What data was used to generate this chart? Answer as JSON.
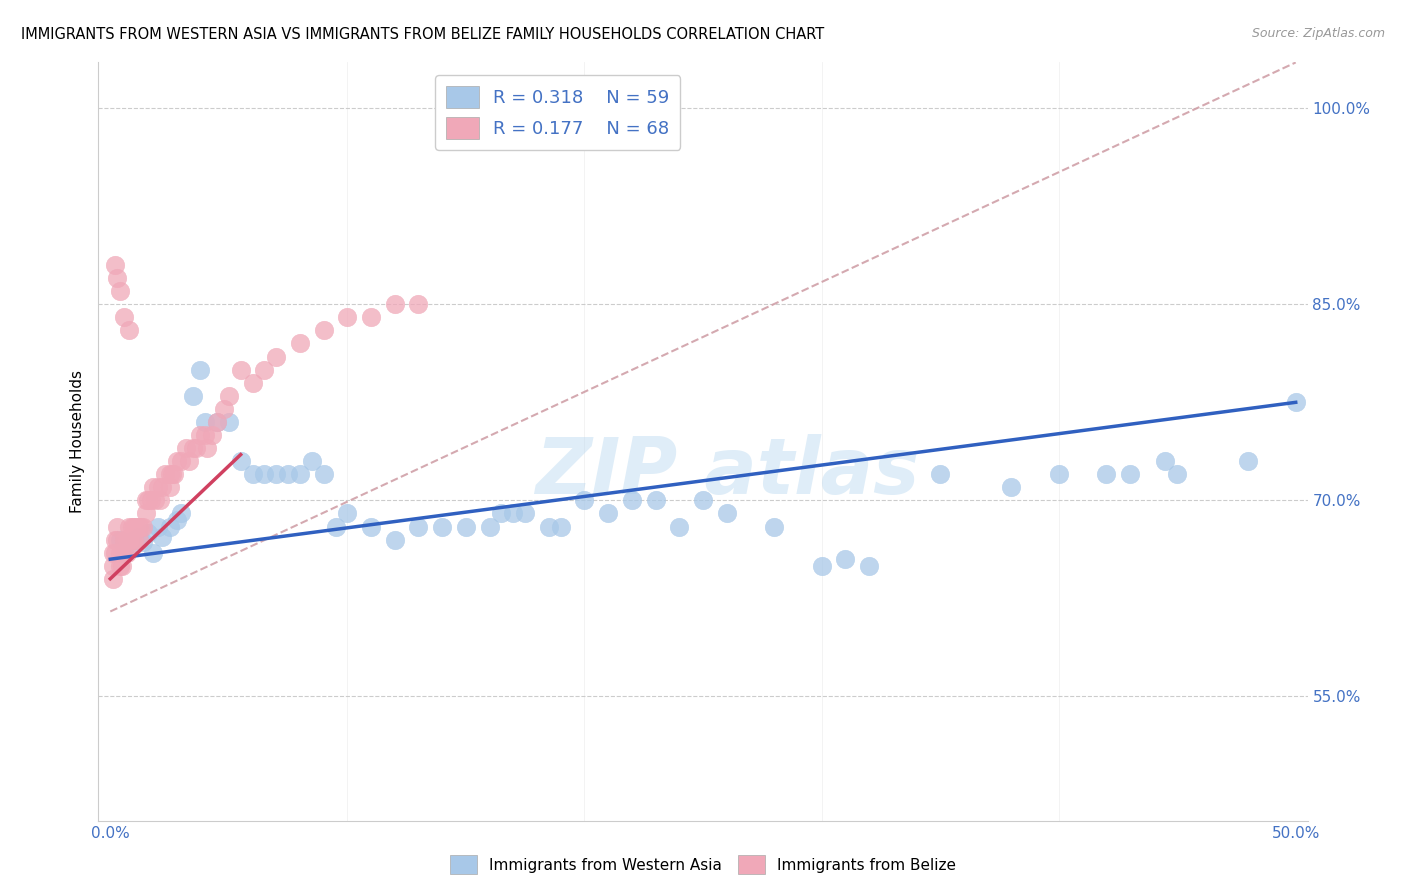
{
  "title": "IMMIGRANTS FROM WESTERN ASIA VS IMMIGRANTS FROM BELIZE FAMILY HOUSEHOLDS CORRELATION CHART",
  "source": "Source: ZipAtlas.com",
  "ylabel": "Family Households",
  "xlim": [
    -0.005,
    0.505
  ],
  "ylim": [
    0.455,
    1.035
  ],
  "xticks": [
    0.0,
    0.1,
    0.2,
    0.3,
    0.4,
    0.5
  ],
  "xticklabels": [
    "0.0%",
    "",
    "",
    "",
    "",
    "50.0%"
  ],
  "ytick_positions": [
    0.55,
    0.7,
    0.85,
    1.0
  ],
  "ytick_labels": [
    "55.0%",
    "70.0%",
    "85.0%",
    "100.0%"
  ],
  "blue_dot_color": "#a8c8e8",
  "pink_dot_color": "#f0a8b8",
  "blue_line_color": "#3060c0",
  "pink_line_color": "#d04060",
  "diag_line_color": "#d0a0a8",
  "R_blue": 0.318,
  "N_blue": 59,
  "R_pink": 0.177,
  "N_pink": 68,
  "legend_label_blue": "Immigrants from Western Asia",
  "legend_label_pink": "Immigrants from Belize",
  "blue_line_x0": 0.0,
  "blue_line_y0": 0.655,
  "blue_line_x1": 0.5,
  "blue_line_y1": 0.775,
  "pink_line_x0": 0.0,
  "pink_line_y0": 0.64,
  "pink_line_x1": 0.055,
  "pink_line_y1": 0.735,
  "diag_line_x0": 0.0,
  "diag_line_y0": 0.615,
  "diag_line_x1": 0.5,
  "diag_line_y1": 1.035,
  "blue_x": [
    0.004,
    0.006,
    0.008,
    0.01,
    0.012,
    0.014,
    0.016,
    0.018,
    0.02,
    0.022,
    0.025,
    0.028,
    0.03,
    0.035,
    0.038,
    0.04,
    0.045,
    0.05,
    0.055,
    0.06,
    0.065,
    0.07,
    0.075,
    0.08,
    0.085,
    0.09,
    0.095,
    0.1,
    0.11,
    0.12,
    0.13,
    0.14,
    0.15,
    0.16,
    0.165,
    0.17,
    0.175,
    0.185,
    0.19,
    0.2,
    0.21,
    0.22,
    0.23,
    0.24,
    0.25,
    0.26,
    0.28,
    0.3,
    0.31,
    0.32,
    0.35,
    0.38,
    0.4,
    0.42,
    0.43,
    0.445,
    0.45,
    0.48,
    0.5
  ],
  "blue_y": [
    0.67,
    0.66,
    0.665,
    0.67,
    0.672,
    0.668,
    0.675,
    0.66,
    0.68,
    0.672,
    0.68,
    0.685,
    0.69,
    0.78,
    0.8,
    0.76,
    0.76,
    0.76,
    0.73,
    0.72,
    0.72,
    0.72,
    0.72,
    0.72,
    0.73,
    0.72,
    0.68,
    0.69,
    0.68,
    0.67,
    0.68,
    0.68,
    0.68,
    0.68,
    0.69,
    0.69,
    0.69,
    0.68,
    0.68,
    0.7,
    0.69,
    0.7,
    0.7,
    0.68,
    0.7,
    0.69,
    0.68,
    0.65,
    0.655,
    0.65,
    0.72,
    0.71,
    0.72,
    0.72,
    0.72,
    0.73,
    0.72,
    0.73,
    0.775
  ],
  "pink_x": [
    0.001,
    0.001,
    0.001,
    0.002,
    0.002,
    0.003,
    0.003,
    0.004,
    0.004,
    0.005,
    0.005,
    0.006,
    0.006,
    0.007,
    0.007,
    0.008,
    0.008,
    0.009,
    0.009,
    0.01,
    0.01,
    0.011,
    0.012,
    0.012,
    0.013,
    0.014,
    0.015,
    0.015,
    0.016,
    0.017,
    0.018,
    0.019,
    0.02,
    0.021,
    0.022,
    0.023,
    0.025,
    0.025,
    0.026,
    0.027,
    0.028,
    0.03,
    0.032,
    0.033,
    0.035,
    0.036,
    0.038,
    0.04,
    0.041,
    0.043,
    0.045,
    0.048,
    0.05,
    0.055,
    0.06,
    0.065,
    0.07,
    0.08,
    0.09,
    0.1,
    0.11,
    0.12,
    0.13,
    0.002,
    0.003,
    0.004,
    0.006,
    0.008
  ],
  "pink_y": [
    0.66,
    0.65,
    0.64,
    0.67,
    0.66,
    0.68,
    0.67,
    0.66,
    0.65,
    0.66,
    0.65,
    0.67,
    0.66,
    0.67,
    0.66,
    0.68,
    0.67,
    0.68,
    0.67,
    0.68,
    0.67,
    0.68,
    0.68,
    0.67,
    0.68,
    0.68,
    0.7,
    0.69,
    0.7,
    0.7,
    0.71,
    0.7,
    0.71,
    0.7,
    0.71,
    0.72,
    0.72,
    0.71,
    0.72,
    0.72,
    0.73,
    0.73,
    0.74,
    0.73,
    0.74,
    0.74,
    0.75,
    0.75,
    0.74,
    0.75,
    0.76,
    0.77,
    0.78,
    0.8,
    0.79,
    0.8,
    0.81,
    0.82,
    0.83,
    0.84,
    0.84,
    0.85,
    0.85,
    0.88,
    0.87,
    0.86,
    0.84,
    0.83
  ],
  "watermark_text": "ZIP atlas",
  "background_color": "#ffffff"
}
